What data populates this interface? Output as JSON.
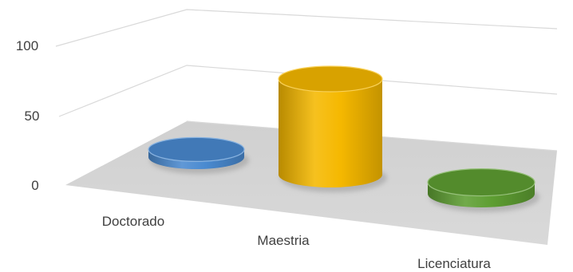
{
  "chart_data": {
    "type": "bar",
    "style": "3d-cylinder",
    "categories": [
      "Doctorado",
      "Maestria",
      "Licenciatura"
    ],
    "values": [
      8,
      100,
      12
    ],
    "colors": [
      "#4a8ad0",
      "#f5b800",
      "#5e9e32"
    ],
    "title": "",
    "xlabel": "",
    "ylabel": "",
    "ylim": [
      0,
      100
    ],
    "yticks": [
      "0",
      "50",
      "100"
    ],
    "grid": true,
    "legend": "none"
  }
}
